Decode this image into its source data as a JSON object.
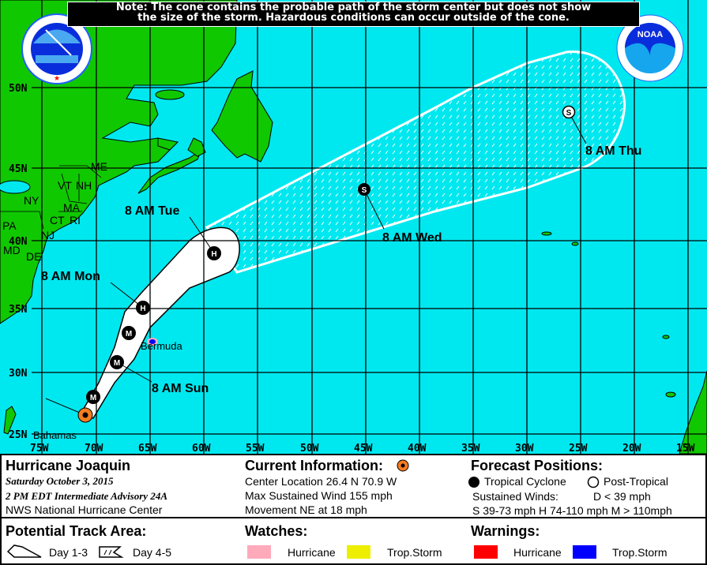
{
  "note": {
    "line1": "Note: The cone contains the probable path of the storm center but does not show",
    "line2": "the size of the storm. Hazardous conditions can occur outside of the cone."
  },
  "map": {
    "colors": {
      "ocean": "#00e8ef",
      "land": "#10c800",
      "cone": "#ffffff",
      "current": "#f47c20"
    },
    "lat_labels": [
      "50N",
      "45N",
      "40N",
      "35N",
      "30N",
      "25N"
    ],
    "lon_labels": [
      "75W",
      "70W",
      "65W",
      "60W",
      "55W",
      "50W",
      "45W",
      "40W",
      "35W",
      "30W",
      "25W",
      "20W",
      "15W"
    ],
    "state_labels": [
      "ME",
      "VT",
      "NH",
      "NY",
      "MA",
      "CT",
      "RI",
      "PA",
      "NJ",
      "MD",
      "DE"
    ],
    "place_labels": {
      "bermuda": "Bermuda",
      "bahamas": "Bahamas"
    },
    "track": [
      {
        "type": "current",
        "symbol": ""
      },
      {
        "type": "tropical",
        "symbol": "M"
      },
      {
        "type": "tropical",
        "symbol": "M",
        "label": "8 AM Sun"
      },
      {
        "type": "tropical",
        "symbol": "M"
      },
      {
        "type": "tropical",
        "symbol": "H",
        "label": "8 AM Mon"
      },
      {
        "type": "tropical",
        "symbol": "H",
        "label": "8 AM Tue"
      },
      {
        "type": "tropical",
        "symbol": "S",
        "label": "8 AM Wed"
      },
      {
        "type": "post-tropical",
        "symbol": "S",
        "label": "8 AM Thu"
      }
    ],
    "logos": {
      "nws": "NATIONAL WEATHER SERVICE",
      "noaa": "NOAA"
    }
  },
  "legend": {
    "storm_name": "Hurricane Joaquin",
    "date": "Saturday  October 3, 2015",
    "advisory": "2 PM EDT Intermediate Advisory 24A",
    "center": "NWS National Hurricane Center",
    "current_title": "Current Information:",
    "center_location": "Center Location 26.4 N  70.9 W",
    "max_wind": "Max Sustained Wind  155 mph",
    "movement": "Movement NE at  18 mph",
    "forecast_title": "Forecast Positions:",
    "tropical": "Tropical Cyclone",
    "post_tropical": "Post-Tropical",
    "sustained": "Sustained Winds:",
    "d_def": "D  < 39 mph",
    "shm_def": "S  39-73 mph  H  74-110 mph  M  > 110mph",
    "track_title": "Potential Track Area:",
    "day13": "Day 1-3",
    "day45": "Day 4-5",
    "watches_title": "Watches:",
    "watch_hurricane": "Hurricane",
    "watch_ts": "Trop.Storm",
    "warnings_title": "Warnings:",
    "warn_hurricane": "Hurricane",
    "warn_ts": "Trop.Storm",
    "colors": {
      "watch_hurricane": "#ffaabb",
      "watch_ts": "#eeee00",
      "warn_hurricane": "#ff0000",
      "warn_ts": "#0000ff"
    }
  }
}
